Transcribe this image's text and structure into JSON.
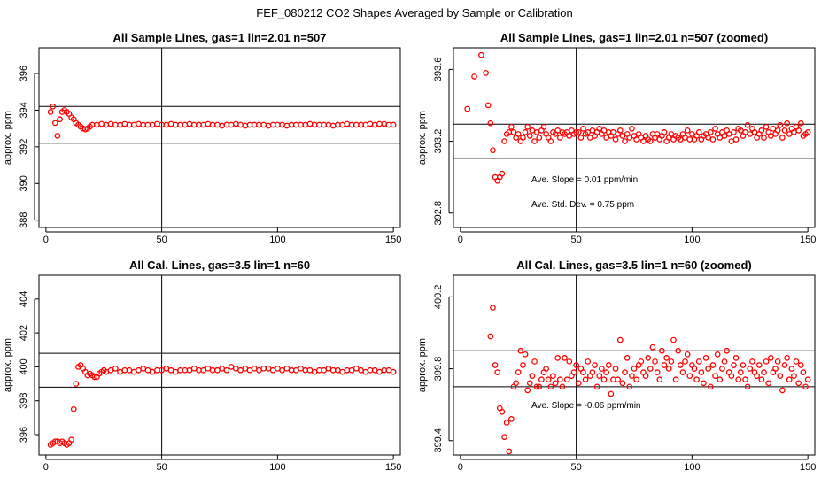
{
  "figure": {
    "title": "FEF_080212  CO2 Shapes Averaged by Sample or Calibration"
  },
  "chart_data": [
    {
      "type": "scatter",
      "title": "All Sample Lines, gas=1 lin=2.01 n=507",
      "ylabel": "approx. ppm",
      "xlim": [
        -3,
        153
      ],
      "ylim": [
        387.6,
        397.4
      ],
      "xticks": [
        0,
        50,
        100,
        150
      ],
      "yticks": [
        388,
        390,
        392,
        394,
        396
      ],
      "marker_color": "#ff0000",
      "hlines": [
        394.2,
        392.2
      ],
      "vline": 50,
      "annotations": [],
      "x": [
        2,
        3,
        4,
        5,
        6,
        7,
        8,
        9,
        10,
        11,
        12,
        13,
        14,
        15,
        16,
        17,
        18,
        19,
        20,
        22,
        24,
        26,
        28,
        30,
        32,
        34,
        36,
        38,
        40,
        42,
        44,
        46,
        48,
        50,
        52,
        54,
        56,
        58,
        60,
        62,
        64,
        66,
        68,
        70,
        72,
        74,
        76,
        78,
        80,
        82,
        84,
        86,
        88,
        90,
        92,
        94,
        96,
        98,
        100,
        102,
        104,
        106,
        108,
        110,
        112,
        114,
        116,
        118,
        120,
        122,
        124,
        126,
        128,
        130,
        132,
        134,
        136,
        138,
        140,
        142,
        144,
        146,
        148,
        150
      ],
      "y": [
        393.9,
        394.2,
        393.3,
        392.6,
        393.5,
        393.9,
        394.0,
        393.9,
        393.8,
        393.6,
        393.5,
        393.3,
        393.2,
        393.1,
        393.0,
        392.95,
        393.0,
        393.1,
        393.2,
        393.2,
        393.25,
        393.2,
        393.25,
        393.2,
        393.2,
        393.25,
        393.2,
        393.2,
        393.25,
        393.2,
        393.2,
        393.2,
        393.25,
        393.2,
        393.2,
        393.25,
        393.2,
        393.2,
        393.2,
        393.25,
        393.2,
        393.2,
        393.2,
        393.25,
        393.2,
        393.2,
        393.15,
        393.2,
        393.2,
        393.25,
        393.2,
        393.15,
        393.2,
        393.2,
        393.2,
        393.2,
        393.15,
        393.2,
        393.2,
        393.2,
        393.15,
        393.2,
        393.2,
        393.2,
        393.2,
        393.25,
        393.2,
        393.2,
        393.2,
        393.2,
        393.15,
        393.2,
        393.2,
        393.25,
        393.2,
        393.2,
        393.2,
        393.2,
        393.25,
        393.2,
        393.25,
        393.25,
        393.2,
        393.2
      ]
    },
    {
      "type": "scatter",
      "title": "All Sample Lines, gas=1 lin=2.01 n=507 (zoomed)",
      "ylabel": "approx. ppm",
      "xlim": [
        -3,
        153
      ],
      "ylim": [
        392.72,
        393.72
      ],
      "xticks": [
        0,
        50,
        100,
        150
      ],
      "yticks": [
        392.8,
        393.2,
        393.6
      ],
      "marker_color": "#ff0000",
      "hlines": [
        393.295,
        393.105
      ],
      "vline": 50,
      "annotations": [
        "Ave. Slope =  0.01  ppm/min",
        "Ave. Std. Dev. =  0.75  ppm"
      ],
      "x": [
        3,
        6,
        9,
        11,
        12,
        13,
        14,
        15,
        16,
        17,
        18,
        19,
        20,
        21,
        22,
        23,
        24,
        25,
        26,
        27,
        28,
        29,
        30,
        31,
        32,
        33,
        34,
        35,
        36,
        37,
        38,
        39,
        40,
        41,
        42,
        43,
        44,
        45,
        46,
        47,
        48,
        49,
        50,
        51,
        52,
        53,
        54,
        55,
        56,
        57,
        58,
        59,
        60,
        61,
        62,
        63,
        64,
        65,
        66,
        67,
        68,
        69,
        70,
        71,
        72,
        73,
        74,
        75,
        76,
        77,
        78,
        79,
        80,
        81,
        82,
        83,
        84,
        85,
        86,
        87,
        88,
        89,
        90,
        91,
        92,
        93,
        94,
        95,
        96,
        97,
        98,
        99,
        100,
        101,
        102,
        103,
        104,
        105,
        106,
        107,
        108,
        109,
        110,
        111,
        112,
        113,
        114,
        115,
        116,
        117,
        118,
        119,
        120,
        121,
        122,
        123,
        124,
        125,
        126,
        127,
        128,
        129,
        130,
        131,
        132,
        133,
        134,
        135,
        136,
        137,
        138,
        139,
        140,
        141,
        142,
        143,
        144,
        145,
        146,
        147,
        148,
        149,
        150
      ],
      "y": [
        393.38,
        393.56,
        393.68,
        393.58,
        393.4,
        393.3,
        393.15,
        393.0,
        392.98,
        393.0,
        393.02,
        393.2,
        393.24,
        393.25,
        393.28,
        393.25,
        393.22,
        393.24,
        393.2,
        393.22,
        393.25,
        393.28,
        393.23,
        393.26,
        393.2,
        393.25,
        393.22,
        393.26,
        393.28,
        393.24,
        393.22,
        393.2,
        393.25,
        393.24,
        393.26,
        393.22,
        393.25,
        393.24,
        393.25,
        393.23,
        393.26,
        393.24,
        393.25,
        393.25,
        393.22,
        393.27,
        393.24,
        393.25,
        393.22,
        393.26,
        393.23,
        393.25,
        393.27,
        393.24,
        393.26,
        393.22,
        393.25,
        393.23,
        393.25,
        393.21,
        393.24,
        393.26,
        393.23,
        393.2,
        393.24,
        393.22,
        393.27,
        393.23,
        393.21,
        393.24,
        393.22,
        393.2,
        393.23,
        393.21,
        393.2,
        393.24,
        393.22,
        393.24,
        393.21,
        393.23,
        393.25,
        393.2,
        393.22,
        393.24,
        393.21,
        393.23,
        393.22,
        393.21,
        393.24,
        393.22,
        393.26,
        393.21,
        393.24,
        393.21,
        393.23,
        393.25,
        393.21,
        393.23,
        393.24,
        393.22,
        393.25,
        393.21,
        393.27,
        393.24,
        393.22,
        393.25,
        393.23,
        393.26,
        393.24,
        393.2,
        393.25,
        393.21,
        393.27,
        393.26,
        393.23,
        393.25,
        393.29,
        393.24,
        393.27,
        393.25,
        393.22,
        393.24,
        393.26,
        393.22,
        393.28,
        393.25,
        393.23,
        393.27,
        393.24,
        393.26,
        393.29,
        393.22,
        393.26,
        393.3,
        393.24,
        393.27,
        393.25,
        393.28,
        393.26,
        393.3,
        393.23,
        393.24,
        393.25
      ]
    },
    {
      "type": "scatter",
      "title": "All Cal. Lines, gas=3.5 lin=1 n=60",
      "ylabel": "approx. ppm",
      "xlim": [
        -3,
        153
      ],
      "ylim": [
        394.8,
        405.4
      ],
      "xticks": [
        0,
        50,
        100,
        150
      ],
      "yticks": [
        396,
        398,
        400,
        402,
        404
      ],
      "marker_color": "#ff0000",
      "hlines": [
        400.8,
        398.8
      ],
      "vline": 50,
      "annotations": [],
      "x": [
        2,
        3,
        4,
        5,
        6,
        7,
        8,
        9,
        10,
        11,
        12,
        13,
        14,
        15,
        16,
        17,
        18,
        19,
        20,
        21,
        22,
        23,
        24,
        25,
        26,
        28,
        30,
        32,
        34,
        36,
        38,
        40,
        42,
        44,
        46,
        48,
        50,
        52,
        54,
        56,
        58,
        60,
        62,
        64,
        66,
        68,
        70,
        72,
        74,
        76,
        78,
        80,
        82,
        84,
        86,
        88,
        90,
        92,
        94,
        96,
        98,
        100,
        102,
        104,
        106,
        108,
        110,
        112,
        114,
        116,
        118,
        120,
        122,
        124,
        126,
        128,
        130,
        132,
        134,
        136,
        138,
        140,
        142,
        144,
        146,
        148,
        150
      ],
      "y": [
        395.4,
        395.5,
        395.6,
        395.6,
        395.5,
        395.6,
        395.5,
        395.4,
        395.5,
        395.7,
        397.5,
        399.0,
        400.0,
        400.1,
        399.9,
        399.7,
        399.5,
        399.6,
        399.5,
        399.4,
        399.4,
        399.6,
        399.7,
        399.8,
        399.7,
        399.8,
        399.9,
        399.7,
        399.8,
        399.8,
        399.7,
        399.8,
        399.9,
        399.8,
        399.7,
        399.8,
        399.8,
        399.9,
        399.8,
        399.7,
        399.8,
        399.8,
        399.8,
        399.9,
        399.8,
        399.8,
        399.9,
        399.8,
        399.8,
        399.9,
        399.8,
        400.0,
        399.9,
        399.8,
        399.9,
        399.8,
        399.9,
        399.8,
        399.9,
        399.9,
        399.8,
        399.9,
        399.8,
        399.9,
        399.8,
        399.8,
        399.9,
        399.8,
        399.8,
        399.7,
        399.8,
        399.8,
        399.9,
        399.8,
        399.8,
        399.7,
        399.8,
        399.8,
        399.9,
        399.8,
        399.7,
        399.8,
        399.8,
        399.7,
        399.8,
        399.8,
        399.7
      ]
    },
    {
      "type": "scatter",
      "title": "All Cal. Lines, gas=3.5 lin=1 n=60 (zoomed)",
      "ylabel": "approx. ppm",
      "xlim": [
        -3,
        153
      ],
      "ylim": [
        399.32,
        400.32
      ],
      "xticks": [
        0,
        50,
        100,
        150
      ],
      "yticks": [
        399.4,
        399.8,
        400.2
      ],
      "marker_color": "#ff0000",
      "hlines": [
        399.9,
        399.7
      ],
      "vline": 50,
      "annotations": [
        "Ave. Slope =  -0.06  ppm/min"
      ],
      "x": [
        13,
        14,
        15,
        16,
        17,
        18,
        19,
        20,
        21,
        22,
        23,
        24,
        25,
        26,
        27,
        28,
        29,
        30,
        31,
        32,
        33,
        34,
        35,
        36,
        37,
        38,
        39,
        40,
        41,
        42,
        43,
        44,
        45,
        46,
        47,
        48,
        49,
        50,
        51,
        52,
        53,
        54,
        55,
        56,
        57,
        58,
        59,
        60,
        61,
        62,
        63,
        64,
        65,
        66,
        67,
        68,
        69,
        70,
        71,
        72,
        73,
        74,
        75,
        76,
        77,
        78,
        79,
        80,
        81,
        82,
        83,
        84,
        85,
        86,
        87,
        88,
        89,
        90,
        91,
        92,
        93,
        94,
        95,
        96,
        97,
        98,
        99,
        100,
        101,
        102,
        103,
        104,
        105,
        106,
        107,
        108,
        109,
        110,
        111,
        112,
        113,
        114,
        115,
        116,
        117,
        118,
        119,
        120,
        121,
        122,
        123,
        124,
        125,
        126,
        127,
        128,
        129,
        130,
        131,
        132,
        133,
        134,
        135,
        136,
        137,
        138,
        139,
        140,
        141,
        142,
        143,
        144,
        145,
        146,
        147,
        148,
        149,
        150
      ],
      "y": [
        399.98,
        400.14,
        399.82,
        399.78,
        399.58,
        399.56,
        399.42,
        399.5,
        399.34,
        399.52,
        399.7,
        399.72,
        399.78,
        399.9,
        399.82,
        399.88,
        399.68,
        399.72,
        399.76,
        399.84,
        399.7,
        399.7,
        399.74,
        399.78,
        399.8,
        399.74,
        399.7,
        399.76,
        399.72,
        399.86,
        399.74,
        399.7,
        399.86,
        399.74,
        399.84,
        399.76,
        399.78,
        399.82,
        399.72,
        399.8,
        399.78,
        399.74,
        399.84,
        399.76,
        399.78,
        399.82,
        399.7,
        399.76,
        399.8,
        399.74,
        399.78,
        399.82,
        399.66,
        399.74,
        399.8,
        399.74,
        399.96,
        399.72,
        399.78,
        399.86,
        399.7,
        399.76,
        399.8,
        399.74,
        399.82,
        399.84,
        399.78,
        399.76,
        399.86,
        399.8,
        399.92,
        399.84,
        399.78,
        399.74,
        399.9,
        399.82,
        399.86,
        399.8,
        399.84,
        399.96,
        399.74,
        399.9,
        399.82,
        399.78,
        399.84,
        399.88,
        399.76,
        399.82,
        399.8,
        399.74,
        399.84,
        399.78,
        399.72,
        399.86,
        399.8,
        399.7,
        399.82,
        399.76,
        399.88,
        399.74,
        399.8,
        399.84,
        399.9,
        399.78,
        399.76,
        399.82,
        399.86,
        399.74,
        399.78,
        399.82,
        399.74,
        399.7,
        399.8,
        399.84,
        399.78,
        399.76,
        399.82,
        399.74,
        399.78,
        399.84,
        399.72,
        399.86,
        399.78,
        399.8,
        399.84,
        399.76,
        399.68,
        399.82,
        399.86,
        399.74,
        399.8,
        399.76,
        399.84,
        399.72,
        399.82,
        399.78,
        399.7,
        399.74
      ]
    }
  ]
}
